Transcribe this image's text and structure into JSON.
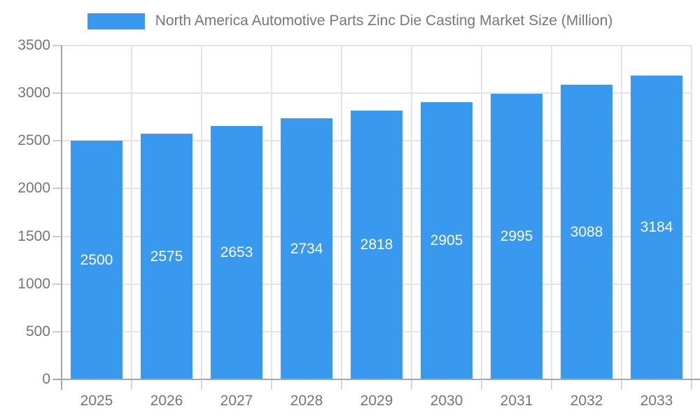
{
  "legend": {
    "label": "North America Automotive Parts Zinc Die Casting Market Size (Million)"
  },
  "chart_data": {
    "type": "bar",
    "title": "North America Automotive Parts Zinc Die Casting Market Size (Million)",
    "categories": [
      "2025",
      "2026",
      "2027",
      "2028",
      "2029",
      "2030",
      "2031",
      "2032",
      "2033"
    ],
    "values": [
      2500,
      2575,
      2653,
      2734,
      2818,
      2905,
      2995,
      3088,
      3184
    ],
    "xlabel": "",
    "ylabel": "",
    "ylim": [
      0,
      3500
    ],
    "y_tick_step": 500,
    "y_tick_labels": [
      "0",
      "500",
      "1000",
      "1500",
      "2000",
      "2500",
      "3000",
      "3500"
    ],
    "grid": "on",
    "legend_position": "top",
    "bar_color": "#3999ee",
    "value_label_color": "#ffffff",
    "axis_text_color": "#757575",
    "title_color": "#777777",
    "gridline_color": "#e3e3e3",
    "axis_line_color": "#a6a6a6"
  }
}
